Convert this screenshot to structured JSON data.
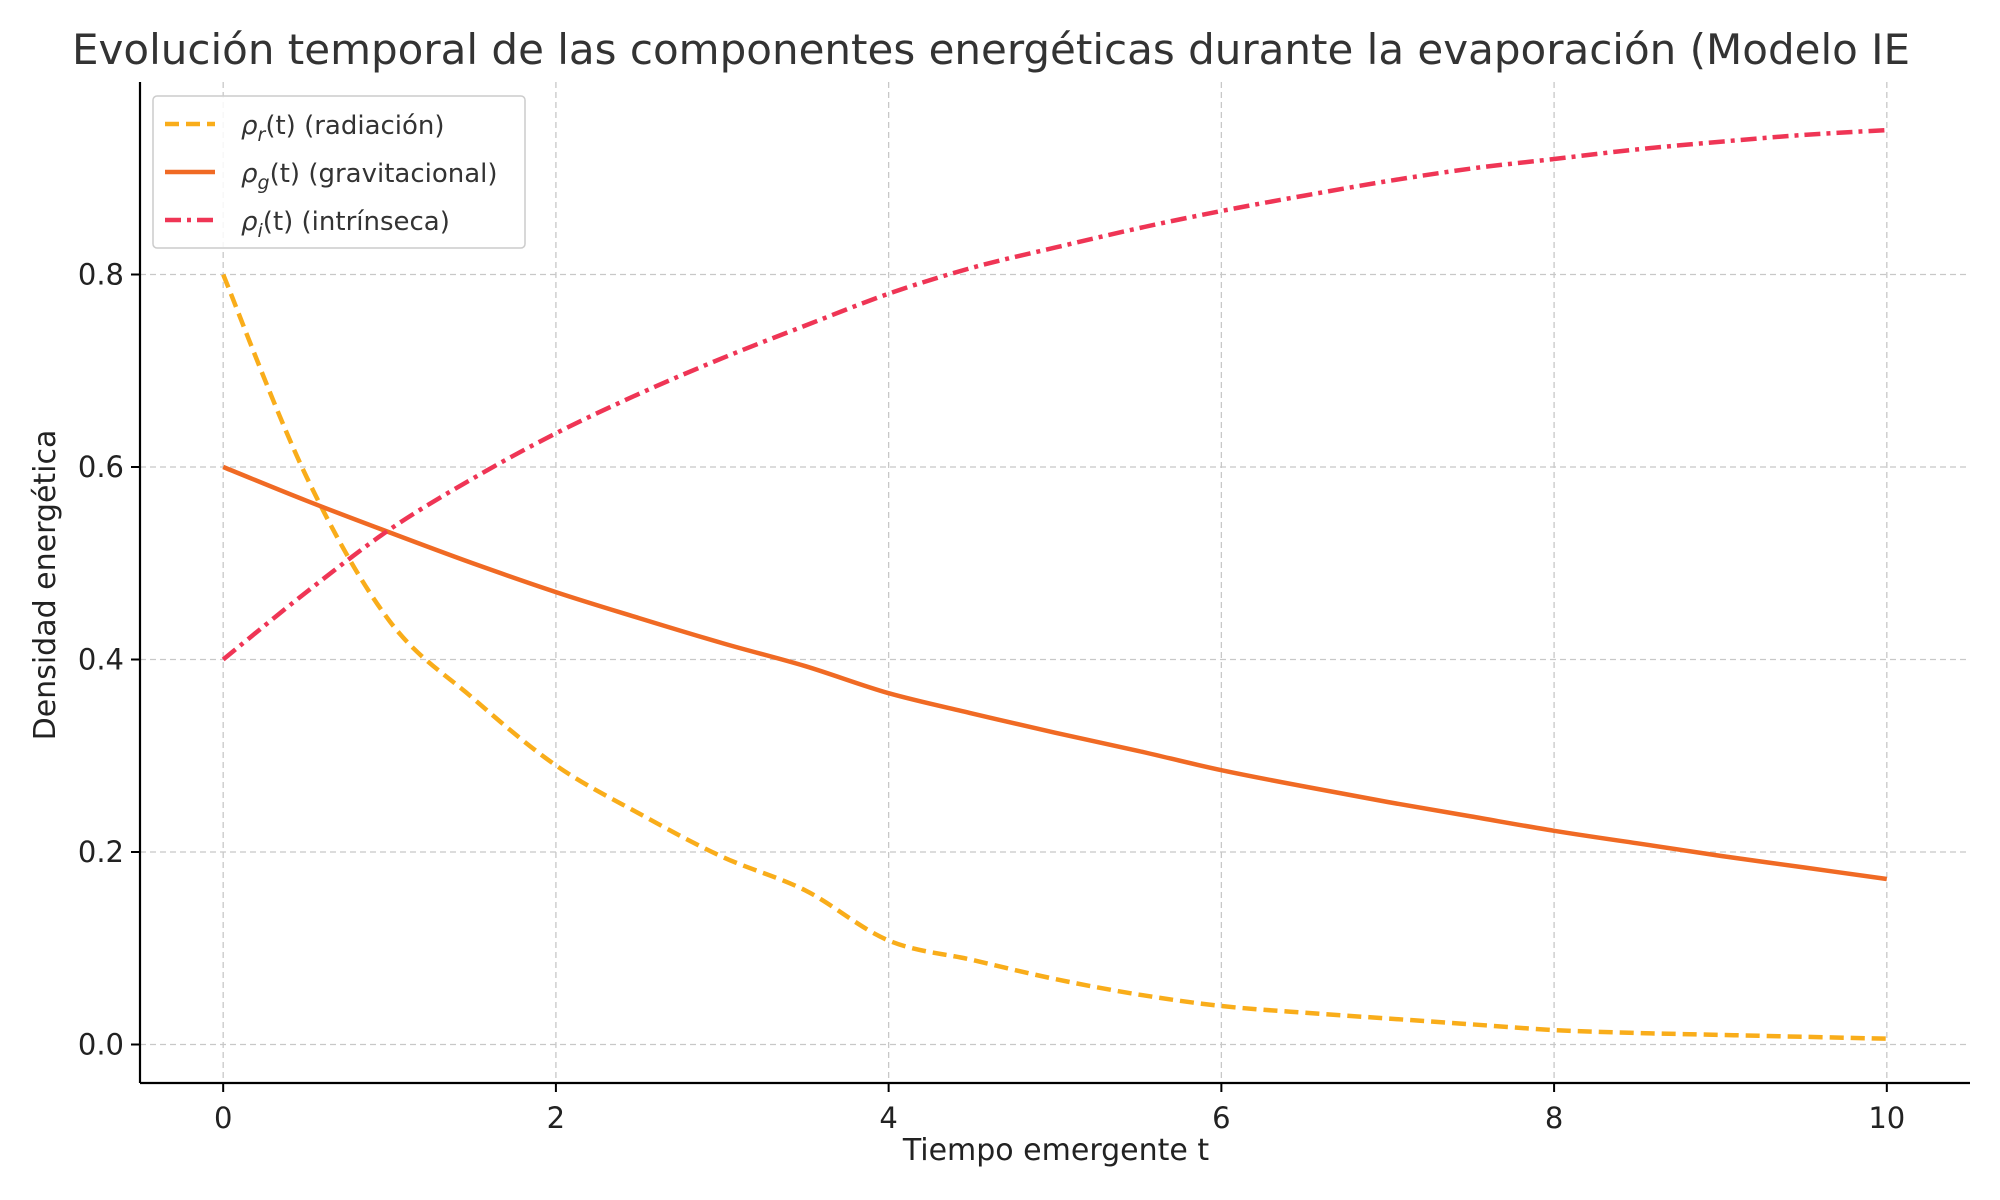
{
  "chart_data": {
    "type": "line",
    "title": "Evolución temporal de las componentes energéticas durante la evaporación (Modelo IE",
    "xlabel": "Tiempo emergente t",
    "ylabel": "Densidad energética",
    "xlim": [
      -0.5,
      10.5
    ],
    "ylim": [
      -0.04,
      1.0
    ],
    "xticks": [
      0,
      2,
      4,
      6,
      8,
      10
    ],
    "xtick_labels": [
      "0",
      "2",
      "4",
      "6",
      "8",
      "10"
    ],
    "yticks": [
      0.0,
      0.2,
      0.4,
      0.6,
      0.8
    ],
    "ytick_labels": [
      "0.0",
      "0.2",
      "0.4",
      "0.6",
      "0.8"
    ],
    "grid": true,
    "legend_position": "top-left",
    "x": [
      0,
      0.5,
      1,
      1.5,
      2,
      2.5,
      3,
      3.5,
      4,
      4.5,
      5,
      5.5,
      6,
      6.5,
      7,
      7.5,
      8,
      8.5,
      9,
      9.5,
      10
    ],
    "series": [
      {
        "name": "ρr(t) (radiación)",
        "legend_base": "ρ",
        "legend_sub": "r",
        "legend_rest": "(t) (radiación)",
        "color": "#f9ad1a",
        "style": "dashed",
        "values": [
          0.8,
          0.59,
          0.44,
          0.36,
          0.29,
          0.24,
          0.195,
          0.16,
          0.108,
          0.088,
          0.068,
          0.052,
          0.04,
          0.033,
          0.027,
          0.021,
          0.015,
          0.012,
          0.01,
          0.008,
          0.006
        ]
      },
      {
        "name": "ρg(t) (gravitacional)",
        "legend_base": "ρ",
        "legend_sub": "g",
        "legend_rest": "(t) (gravitacional)",
        "color": "#f06a24",
        "style": "solid",
        "values": [
          0.6,
          0.565,
          0.532,
          0.5,
          0.47,
          0.443,
          0.417,
          0.393,
          0.365,
          0.344,
          0.324,
          0.305,
          0.285,
          0.268,
          0.252,
          0.237,
          0.222,
          0.209,
          0.196,
          0.184,
          0.172
        ]
      },
      {
        "name": "ρi(t) (intrínseca)",
        "legend_base": "ρ",
        "legend_sub": "i",
        "legend_rest": "(t) (intrínseca)",
        "color": "#ef3555",
        "style": "dashdot",
        "values": [
          0.4,
          0.47,
          0.535,
          0.588,
          0.635,
          0.676,
          0.713,
          0.747,
          0.78,
          0.807,
          0.828,
          0.848,
          0.866,
          0.882,
          0.897,
          0.91,
          0.92,
          0.93,
          0.938,
          0.945,
          0.95
        ]
      }
    ]
  }
}
